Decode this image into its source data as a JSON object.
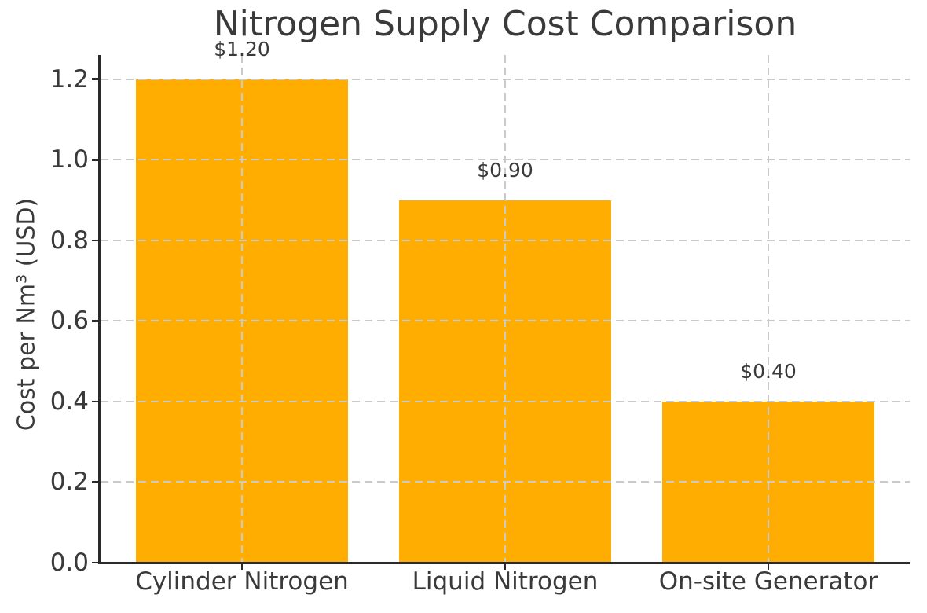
{
  "chart_data": {
    "type": "bar",
    "title": "Nitrogen Supply Cost Comparison",
    "ylabel": "Cost per Nm³ (USD)",
    "xlabel": "",
    "categories": [
      "Cylinder Nitrogen",
      "Liquid Nitrogen",
      "On-site Generator"
    ],
    "values": [
      1.2,
      0.9,
      0.4
    ],
    "bar_value_labels": [
      "$1.20",
      "$0.90",
      "$0.40"
    ],
    "yticks": [
      0,
      0.2,
      0.4,
      0.6,
      0.8,
      1.0,
      1.2
    ],
    "ytick_labels": [
      "0.0",
      "0.2",
      "0.4",
      "0.6",
      "0.8",
      "1.0",
      "1.2"
    ],
    "ylim": [
      0,
      1.26
    ],
    "legend": "none",
    "grid": {
      "style": "dashed",
      "axes": "both",
      "drawn_over_bars": true
    },
    "colors": {
      "bar": "#FFAD00",
      "grid": "#CACACA",
      "spine": "#2A2A2A",
      "text": "#3A3A3A"
    }
  }
}
